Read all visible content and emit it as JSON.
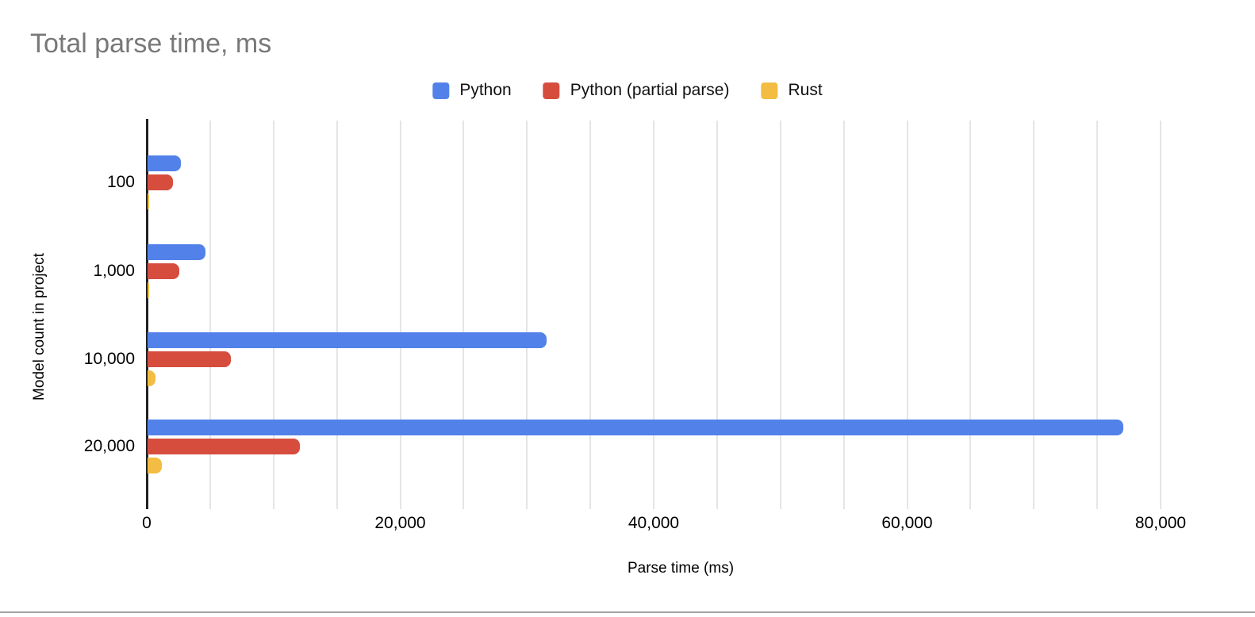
{
  "chart_data": {
    "type": "bar",
    "orientation": "horizontal",
    "title": "Total parse time, ms",
    "xlabel": "Parse time (ms)",
    "ylabel": "Model count in project",
    "categories": [
      "100",
      "1,000",
      "10,000",
      "20,000"
    ],
    "series": [
      {
        "name": "Python",
        "color": "#5282e9",
        "values": [
          2600,
          4600,
          31500,
          77000
        ]
      },
      {
        "name": "Python (partial parse)",
        "color": "#d64d3e",
        "values": [
          2000,
          2500,
          6600,
          12000
        ]
      },
      {
        "name": "Rust",
        "color": "#f2bd42",
        "values": [
          120,
          140,
          650,
          1100
        ]
      }
    ],
    "x_axis": {
      "min": 0,
      "max": 80000,
      "tick_step": 20000,
      "gridline_step": 5000,
      "tick_labels": [
        "0",
        "20,000",
        "40,000",
        "60,000",
        "80,000"
      ]
    },
    "legend_position": "top-center",
    "grid": true,
    "colors": {
      "title_text": "#787878",
      "axis_text": "#000000",
      "gridline": "#e5e5e5",
      "zero_axis": "#212121",
      "background": "#ffffff",
      "page_divider": "#a3a3a3"
    }
  }
}
